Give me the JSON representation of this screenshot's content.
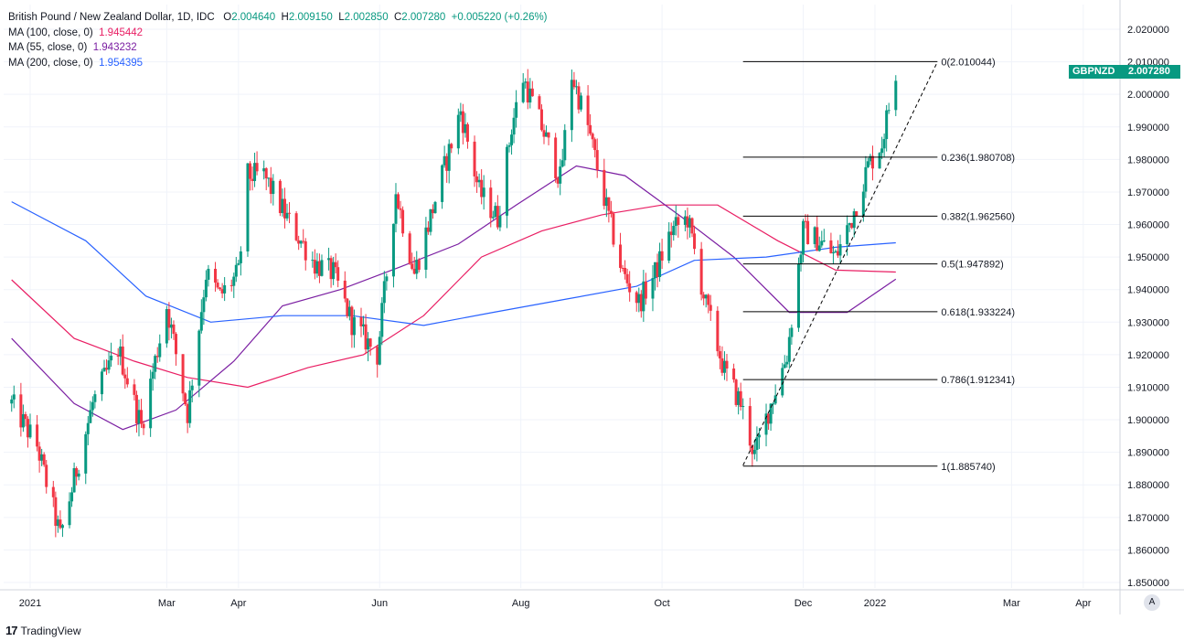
{
  "legend": {
    "title": "British Pound / New Zealand Dollar, 1D, IDC",
    "ohlc": [
      {
        "label": "O",
        "value": "2.004640"
      },
      {
        "label": "H",
        "value": "2.009150"
      },
      {
        "label": "L",
        "value": "2.002850"
      },
      {
        "label": "C",
        "value": "2.007280"
      }
    ],
    "change": "+0.005220 (+0.26%)",
    "ma": [
      {
        "label": "MA (100, close, 0)",
        "value": "1.945442",
        "color": "#e91e63"
      },
      {
        "label": "MA (55, close, 0)",
        "value": "1.943232",
        "color": "#7b1fa2"
      },
      {
        "label": "MA (200, close, 0)",
        "value": "1.954395",
        "color": "#2962ff"
      }
    ]
  },
  "badge": {
    "symbol": "GBPNZD",
    "price": "2.007280",
    "color": "#089981"
  },
  "footer": {
    "brand": "TradingView",
    "logo": "17"
  },
  "auto_button": "A",
  "chart_data": {
    "type": "candlestick",
    "ylim": [
      1.845,
      2.025
    ],
    "y_ticks": [
      "2.020000",
      "2.010000",
      "2.000000",
      "1.990000",
      "1.980000",
      "1.970000",
      "1.960000",
      "1.950000",
      "1.940000",
      "1.930000",
      "1.920000",
      "1.910000",
      "1.900000",
      "1.890000",
      "1.880000",
      "1.870000",
      "1.860000",
      "1.850000"
    ],
    "x_ticks": [
      {
        "label": "2021",
        "date": "2021-01-01"
      },
      {
        "label": "Mar",
        "date": "2021-03-01"
      },
      {
        "label": "Apr",
        "date": "2021-04-01"
      },
      {
        "label": "Jun",
        "date": "2021-06-01"
      },
      {
        "label": "Aug",
        "date": "2021-08-01"
      },
      {
        "label": "Oct",
        "date": "2021-10-01"
      },
      {
        "label": "Dec",
        "date": "2021-12-01"
      },
      {
        "label": "2022",
        "date": "2022-01-01"
      },
      {
        "label": "Mar",
        "date": "2022-03-01"
      },
      {
        "label": "Apr",
        "date": "2022-04-01"
      }
    ],
    "price_path": [
      [
        "2020-12-24",
        1.905
      ],
      [
        "2021-01-04",
        1.892
      ],
      [
        "2021-01-14",
        1.864
      ],
      [
        "2021-01-28",
        1.905
      ],
      [
        "2021-02-08",
        1.922
      ],
      [
        "2021-02-18",
        1.898
      ],
      [
        "2021-03-01",
        1.935
      ],
      [
        "2021-03-10",
        1.902
      ],
      [
        "2021-03-18",
        1.945
      ],
      [
        "2021-03-24",
        1.938
      ],
      [
        "2021-04-01",
        1.945
      ],
      [
        "2021-04-05",
        1.975
      ],
      [
        "2021-04-12",
        1.975
      ],
      [
        "2021-04-22",
        1.962
      ],
      [
        "2021-05-04",
        1.948
      ],
      [
        "2021-05-12",
        1.945
      ],
      [
        "2021-05-20",
        1.93
      ],
      [
        "2021-05-31",
        1.92
      ],
      [
        "2021-06-08",
        1.97
      ],
      [
        "2021-06-16",
        1.945
      ],
      [
        "2021-06-22",
        1.96
      ],
      [
        "2021-06-28",
        1.975
      ],
      [
        "2021-07-06",
        1.995
      ],
      [
        "2021-07-14",
        1.97
      ],
      [
        "2021-07-22",
        1.962
      ],
      [
        "2021-07-28",
        1.99
      ],
      [
        "2021-08-02",
        2.005
      ],
      [
        "2021-08-10",
        1.99
      ],
      [
        "2021-08-18",
        1.974
      ],
      [
        "2021-08-23",
        2.006
      ],
      [
        "2021-08-30",
        1.99
      ],
      [
        "2021-09-06",
        1.968
      ],
      [
        "2021-09-14",
        1.945
      ],
      [
        "2021-09-21",
        1.936
      ],
      [
        "2021-09-28",
        1.945
      ],
      [
        "2021-10-05",
        1.958
      ],
      [
        "2021-10-12",
        1.962
      ],
      [
        "2021-10-20",
        1.935
      ],
      [
        "2021-10-28",
        1.915
      ],
      [
        "2021-11-04",
        1.905
      ],
      [
        "2021-11-10",
        1.889
      ],
      [
        "2021-11-17",
        1.905
      ],
      [
        "2021-11-24",
        1.92
      ],
      [
        "2021-12-01",
        1.958
      ],
      [
        "2021-12-08",
        1.955
      ],
      [
        "2021-12-15",
        1.95
      ],
      [
        "2021-12-22",
        1.962
      ],
      [
        "2021-12-29",
        1.978
      ],
      [
        "2022-01-04",
        1.985
      ],
      [
        "2022-01-10",
        2.007
      ]
    ],
    "moving_averages": [
      {
        "name": "MA (100, close, 0)",
        "color": "#e91e63",
        "points": [
          [
            "2020-12-24",
            1.943
          ],
          [
            "2021-01-20",
            1.925
          ],
          [
            "2021-02-15",
            1.918
          ],
          [
            "2021-03-10",
            1.913
          ],
          [
            "2021-04-05",
            1.91
          ],
          [
            "2021-05-01",
            1.916
          ],
          [
            "2021-05-25",
            1.92
          ],
          [
            "2021-06-20",
            1.932
          ],
          [
            "2021-07-15",
            1.95
          ],
          [
            "2021-08-10",
            1.958
          ],
          [
            "2021-09-05",
            1.963
          ],
          [
            "2021-10-01",
            1.966
          ],
          [
            "2021-10-25",
            1.966
          ],
          [
            "2021-11-20",
            1.955
          ],
          [
            "2021-12-15",
            1.946
          ],
          [
            "2022-01-10",
            1.9454
          ]
        ]
      },
      {
        "name": "MA (55, close, 0)",
        "color": "#7b1fa2",
        "points": [
          [
            "2020-12-24",
            1.925
          ],
          [
            "2021-01-20",
            1.905
          ],
          [
            "2021-02-10",
            1.897
          ],
          [
            "2021-03-05",
            1.903
          ],
          [
            "2021-03-30",
            1.918
          ],
          [
            "2021-04-20",
            1.935
          ],
          [
            "2021-05-15",
            1.94
          ],
          [
            "2021-06-10",
            1.947
          ],
          [
            "2021-07-05",
            1.954
          ],
          [
            "2021-07-30",
            1.966
          ],
          [
            "2021-08-25",
            1.978
          ],
          [
            "2021-09-15",
            1.975
          ],
          [
            "2021-10-10",
            1.962
          ],
          [
            "2021-11-01",
            1.95
          ],
          [
            "2021-11-25",
            1.933
          ],
          [
            "2021-12-20",
            1.933
          ],
          [
            "2022-01-10",
            1.9432
          ]
        ]
      },
      {
        "name": "MA (200, close, 0)",
        "color": "#2962ff",
        "points": [
          [
            "2020-12-24",
            1.967
          ],
          [
            "2021-01-25",
            1.955
          ],
          [
            "2021-02-20",
            1.938
          ],
          [
            "2021-03-20",
            1.93
          ],
          [
            "2021-04-20",
            1.932
          ],
          [
            "2021-05-20",
            1.932
          ],
          [
            "2021-06-20",
            1.929
          ],
          [
            "2021-07-20",
            1.933
          ],
          [
            "2021-08-20",
            1.937
          ],
          [
            "2021-09-20",
            1.941
          ],
          [
            "2021-10-15",
            1.949
          ],
          [
            "2021-11-15",
            1.95
          ],
          [
            "2021-12-15",
            1.953
          ],
          [
            "2022-01-10",
            1.9544
          ]
        ]
      }
    ],
    "fibonacci": [
      {
        "label": "0(2.010044)",
        "value": 2.010044
      },
      {
        "label": "0.236(1.980708)",
        "value": 1.980708
      },
      {
        "label": "0.382(1.962560)",
        "value": 1.96256
      },
      {
        "label": "0.5(1.947892)",
        "value": 1.947892
      },
      {
        "label": "0.618(1.933224)",
        "value": 1.933224
      },
      {
        "label": "0.786(1.912341)",
        "value": 1.912341
      },
      {
        "label": "1(1.885740)",
        "value": 1.88574
      }
    ],
    "fib_start": "2021-11-05",
    "fib_end": "2022-01-28",
    "trendline": [
      [
        "2021-11-05",
        1.886
      ],
      [
        "2022-01-28",
        2.01
      ]
    ],
    "up_color": "#089981",
    "down_color": "#f23645",
    "grid": true
  }
}
